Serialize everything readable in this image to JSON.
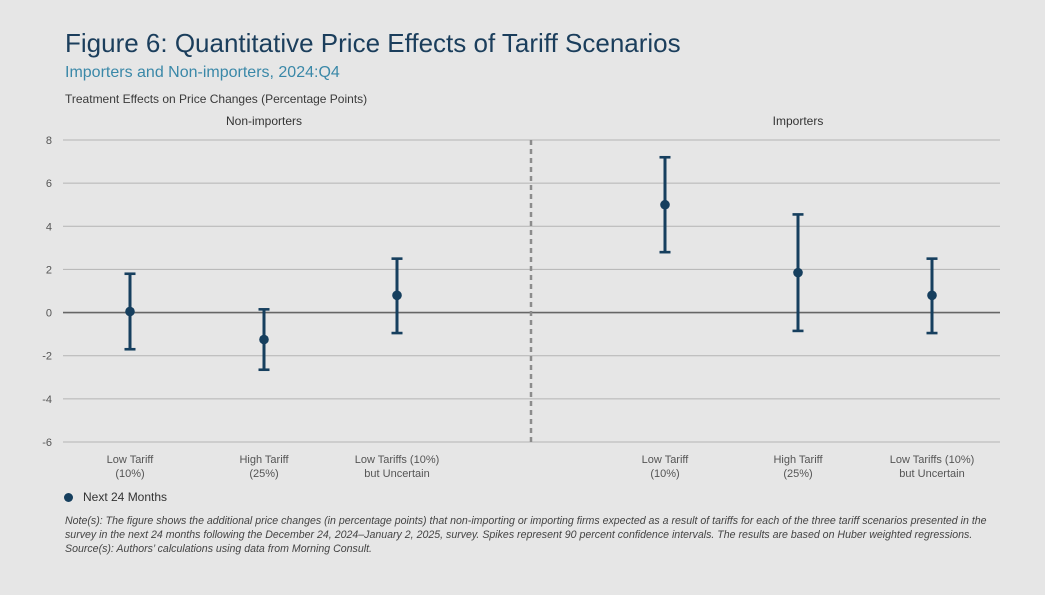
{
  "header": {
    "title": "Figure 6: Quantitative Price Effects of Tariff Scenarios",
    "subtitle": "Importers and Non-importers, 2024:Q4",
    "ylabel": "Treatment Effects on Price Changes (Percentage Points)"
  },
  "legend": {
    "label": "Next 24 Months"
  },
  "notes": {
    "note": "Note(s): The figure shows the additional price changes (in percentage points) that non-importing or importing firms expected as a result of tariffs for each of the three tariff scenarios presented in the survey in the next 24 months following the December 24, 2024–January 2, 2025, survey. Spikes represent 90 percent confidence intervals. The results are based on Huber weighted regressions.",
    "source": "Source(s): Authors’ calculations using data from Morning Consult."
  },
  "colors": {
    "marker": "#163f5e",
    "grid": "#b4b4b4",
    "zero_line": "#666666",
    "divider": "#8c8c8c",
    "tick_text": "#555555"
  },
  "chart_data": {
    "type": "scatter",
    "title": "Figure 6: Quantitative Price Effects of Tariff Scenarios",
    "subtitle": "Importers and Non-importers, 2024:Q4",
    "ylabel": "Treatment Effects on Price Changes (Percentage Points)",
    "ylim": [
      -6,
      8
    ],
    "yticks": [
      8,
      6,
      4,
      2,
      0,
      -2,
      -4,
      -6
    ],
    "grid": true,
    "legend_position": "bottom-left",
    "series_name": "Next 24 Months",
    "panels": [
      {
        "name": "Non-importers",
        "points": [
          {
            "label_line1": "Low Tariff",
            "label_line2": "(10%)",
            "value": 0.05,
            "ci_low": -1.7,
            "ci_high": 1.8
          },
          {
            "label_line1": "High Tariff",
            "label_line2": "(25%)",
            "value": -1.25,
            "ci_low": -2.65,
            "ci_high": 0.15
          },
          {
            "label_line1": "Low Tariffs (10%)",
            "label_line2": "but Uncertain",
            "value": 0.8,
            "ci_low": -0.95,
            "ci_high": 2.5
          }
        ]
      },
      {
        "name": "Importers",
        "points": [
          {
            "label_line1": "Low Tariff",
            "label_line2": "(10%)",
            "value": 5.0,
            "ci_low": 2.8,
            "ci_high": 7.2
          },
          {
            "label_line1": "High Tariff",
            "label_line2": "(25%)",
            "value": 1.85,
            "ci_low": -0.85,
            "ci_high": 4.55
          },
          {
            "label_line1": "Low Tariffs (10%)",
            "label_line2": "but Uncertain",
            "value": 0.8,
            "ci_low": -0.95,
            "ci_high": 2.5
          }
        ]
      }
    ]
  }
}
